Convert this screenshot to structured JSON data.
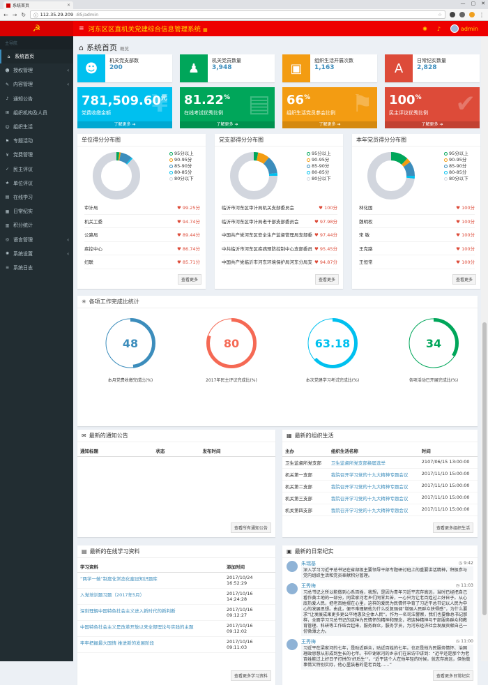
{
  "browser": {
    "tab_title": "系统首页",
    "url_host": "112.35.29.209",
    "url_path": ":85/admin",
    "icons": [
      "back-icon",
      "forward-icon",
      "reload-icon",
      "info-icon",
      "star-icon",
      "extension-icon",
      "menu-icon"
    ]
  },
  "header": {
    "title": "河东区区直机关党建综合信息管理系统",
    "user": "admin",
    "accent": "#e00000",
    "gold": "#ffd700"
  },
  "sidebar": {
    "heading": "主导航",
    "items": [
      {
        "label": "系统首页",
        "icon": "home-icon"
      },
      {
        "label": "授权管理",
        "icon": "user-icon",
        "arrow": "‹"
      },
      {
        "label": "内容管理",
        "icon": "edit-icon",
        "arrow": "‹"
      },
      {
        "label": "通知公告",
        "icon": "bell-icon"
      },
      {
        "label": "组织机构及人员",
        "icon": "sitemap-icon"
      },
      {
        "label": "组织生活",
        "icon": "users-icon"
      },
      {
        "label": "专题活动",
        "icon": "flag-icon"
      },
      {
        "label": "党费管理",
        "icon": "money-icon"
      },
      {
        "label": "民主评议",
        "icon": "thumb-icon"
      },
      {
        "label": "单位评议",
        "icon": "star-icon"
      },
      {
        "label": "在线学习",
        "icon": "book-icon"
      },
      {
        "label": "日常纪实",
        "icon": "calendar-icon"
      },
      {
        "label": "积分统计",
        "icon": "chart-icon"
      },
      {
        "label": "语言管理",
        "icon": "language-icon",
        "arrow": "‹"
      },
      {
        "label": "系统设置",
        "icon": "gear-icon",
        "arrow": "‹"
      },
      {
        "label": "系统日志",
        "icon": "log-icon"
      }
    ]
  },
  "page": {
    "title": "系统首页",
    "subtitle": "概览"
  },
  "info_boxes": [
    {
      "label": "机关党支部数",
      "value": "200",
      "color": "#00c0ef",
      "icon": "group-icon"
    },
    {
      "label": "机关党员数量",
      "value": "3,948",
      "color": "#00a65a",
      "icon": "person-icon"
    },
    {
      "label": "组织生活开展次数",
      "value": "1,163",
      "color": "#f39c12",
      "icon": "archive-icon"
    },
    {
      "label": "日常纪实数量",
      "value": "2,828",
      "color": "#dd4b39",
      "icon": "font-icon"
    }
  ],
  "stat_boxes": [
    {
      "value": "781,509.60",
      "unit": "元",
      "label": "党费收缴金额",
      "more": "了解更多",
      "color": "#00c0ef",
      "deco": "¥"
    },
    {
      "value": "81.22",
      "unit": "%",
      "label": "在线考试优秀比例",
      "more": "了解更多",
      "color": "#00a65a",
      "deco": "▤"
    },
    {
      "value": "66",
      "unit": "%",
      "label": "组织生活党员参会比例",
      "more": "了解更多",
      "color": "#f39c12",
      "deco": "⚑"
    },
    {
      "value": "100",
      "unit": "%",
      "label": "民主评议优秀比例",
      "more": "了解更多",
      "color": "#dd4b39",
      "deco": "✔"
    }
  ],
  "legend": [
    {
      "label": "95分以上",
      "color": "#00a65a"
    },
    {
      "label": "90-95分",
      "color": "#f39c12"
    },
    {
      "label": "85-90分",
      "color": "#3c8dbc"
    },
    {
      "label": "80-85分",
      "color": "#00c0ef"
    },
    {
      "label": "80分以下",
      "color": "#d2d6de"
    }
  ],
  "dist_panels": [
    {
      "title": "单位得分分布图",
      "more": "查看更多",
      "segments": [
        2,
        1,
        8,
        1,
        88
      ],
      "rows": [
        [
          "审计局",
          "99.25分"
        ],
        [
          "机关工委",
          "94.74分"
        ],
        [
          "公路局",
          "89.44分"
        ],
        [
          "疾控中心",
          "86.74分"
        ],
        [
          "妇联",
          "85.71分"
        ]
      ]
    },
    {
      "title": "党支部得分分布图",
      "more": "查看更多",
      "segments": [
        3,
        8,
        12,
        2,
        75
      ],
      "rows": [
        [
          "临沂市河东区审计局机关支部委员会",
          "100分"
        ],
        [
          "临沂市河东区审计局老干部支部委员会",
          "97.98分"
        ],
        [
          "中国共产党河东区安全生产监督管理局支部委员会",
          "97.44分"
        ],
        [
          "中共临沂市河东区疾病预防控制中心支部委员会",
          "95.45分"
        ],
        [
          "中国共产党临沂市河东环境保护局河东分局支部委员会",
          "94.87分"
        ]
      ]
    },
    {
      "title": "本年党员得分分布图",
      "more": "查看更多",
      "segments": [
        12,
        3,
        10,
        2,
        73
      ],
      "rows": [
        [
          "林化国",
          "100分"
        ],
        [
          "魏明权",
          "100分"
        ],
        [
          "宋 敏",
          "100分"
        ],
        [
          "王克路",
          "100分"
        ],
        [
          "王恒常",
          "100分"
        ]
      ]
    }
  ],
  "progress": {
    "title": "各项工作完成比统计",
    "items": [
      {
        "value": "48",
        "fraction": 0.48,
        "label": "本月党费收缴完成比(%)",
        "color": "#3c8dbc"
      },
      {
        "value": "80",
        "fraction": 0.8,
        "label": "2017年民主评议完成比(%)",
        "color": "#f56954"
      },
      {
        "value": "63.18",
        "fraction": 0.6318,
        "label": "本次党建学习考试完成比(%)",
        "color": "#00c0ef"
      },
      {
        "value": "34",
        "fraction": 0.34,
        "label": "各项活动已开展完成比(%)",
        "color": "#00a65a"
      }
    ]
  },
  "notices": {
    "title": "最新的通知公告",
    "cols": [
      "通知标题",
      "状态",
      "发布时间"
    ],
    "more": "查看所有通知公告"
  },
  "org_life": {
    "title": "最新的组织生活",
    "cols": [
      "主办",
      "组织生活名称",
      "时间"
    ],
    "more": "查看更多组织生活",
    "rows": [
      [
        "卫生监督所党支部",
        "卫生监督所党支部换届选举",
        "2107/06/15 13:00:00"
      ],
      [
        "机关第一支部",
        "我院召开学习党的十九大精神专题会议",
        "2017/11/10 15:00:00"
      ],
      [
        "机关第二支部",
        "我院召开学习党的十九大精神专题会议",
        "2017/11/10 15:00:00"
      ],
      [
        "机关第三支部",
        "我院召开学习党的十九大精神专题会议",
        "2017/11/10 15:00:00"
      ],
      [
        "机关第四支部",
        "我院召开学习党的十九大精神专题会议",
        "2017/11/10 15:00:00"
      ]
    ]
  },
  "study": {
    "title": "最新的在线学习资料",
    "cols": [
      "学习资料",
      "添加时间"
    ],
    "more": "查看更多学习资料",
    "rows": [
      [
        "“两学一做”制度化常态化建设知识题库",
        "2017/10/24 16:52:29"
      ],
      [
        "入党培训题习题（2017年5月）",
        "2017/10/16 14:24:28"
      ],
      [
        "深刻理解中国特色社会主义进入新时代的新判断",
        "2017/10/16 09:12:27"
      ],
      [
        "中国特色社会主义是改革开放以来全部理论与实践的主题",
        "2017/10/16 09:12:02"
      ],
      [
        "牢牢把握最大国情 推进新的发展阶段",
        "2017/10/16 09:11:03"
      ]
    ]
  },
  "daily": {
    "title": "最新的日常纪实",
    "more": "查看更多日常纪实",
    "items": [
      {
        "name": "朱瑞基",
        "time": "9:42",
        "text": "深入学习习近平总书记在省部级主要领导干部专题研讨班上的重要讲话精神，积极参与党内组织生活和党员奉献积分管理。"
      },
      {
        "name": "王秀梅",
        "time": "11:03",
        "text": "习总书记之所以能做到心系百姓，我想，是因为青年习近平志存高远，当时已经把自己看作黄土地的一部分，同梁家河老乡们同甘共苦，一心只为让老百姓过上好日子。从心底热爱人民，把老百姓摆在心里，这样的爱民为民情怀孕育了习近平总书记以人民为中心的发展思想。由此，便不难理解他为什么反复强调“增强人民群众获得感”，为什么要求“让发展成果更多更公平地惠及全体人民”。作为一名司法警察，我们也要像总书记那样，全面学习习总书记的这种为民情怀的精神和理念，将这种精神与干部服务群众和教育管理、科研等工作结合起来，服务群众，服务学员，为河东经济社会发展贡献自己一份微薄之力。"
      },
      {
        "name": "王秀梅",
        "time": "11:00",
        "text": "习近平在梁家河的七年，是贴近群众，贴近百姓的七年。也正是他为民服务情怀、治国理政思想从形成到生长的七年。书中谢家河的乡亲们在采访中讲到：“近平还是那个为老百姓能过上好日子打拼的‘好后生’”。“近平这个人在他年轻的时候，就志存高远，但他做事情又特别实际，他心里装着的是老百姓……”"
      }
    ]
  }
}
